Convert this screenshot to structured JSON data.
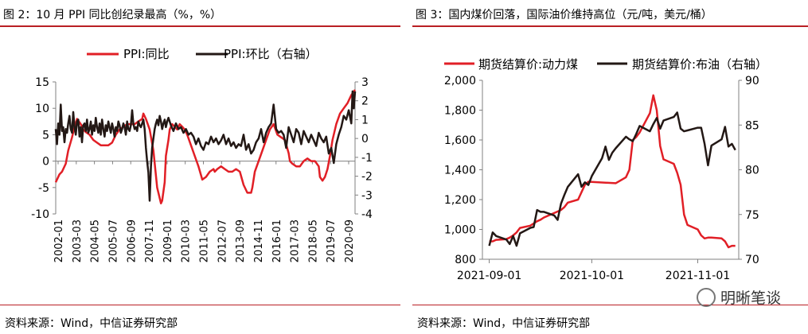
{
  "left": {
    "title": "图 2：10 月 PPI 同比创纪录最高（%，%）",
    "source": "资料来源：Wind，中信证券研究部",
    "chart_data": {
      "type": "line",
      "x_ticks": [
        "2002-01",
        "2003-03",
        "2004-05",
        "2005-07",
        "2006-09",
        "2007-11",
        "2009-01",
        "2010-03",
        "2011-05",
        "2012-07",
        "2013-09",
        "2014-11",
        "2016-01",
        "2017-03",
        "2018-05",
        "2019-07",
        "2020-09"
      ],
      "ylim_left": [
        -10,
        15
      ],
      "y_ticks_left": [
        "-10",
        "-5",
        "0",
        "5",
        "10",
        "15"
      ],
      "ylim_right": [
        -4,
        3
      ],
      "y_ticks_right": [
        "-4",
        "-3",
        "-2",
        "-1",
        "0",
        "1",
        "2",
        "3"
      ],
      "legend_position": "top",
      "series": [
        {
          "name": "PPI:同比",
          "axis": "left",
          "color": "#e11f26",
          "x": [
            0,
            3,
            5,
            8,
            10,
            13,
            15,
            17,
            20,
            22,
            24,
            27,
            30,
            33,
            36,
            39,
            42,
            45,
            48,
            51,
            54,
            57,
            60,
            63,
            66,
            69,
            70,
            72,
            75,
            78,
            81,
            83,
            84,
            85,
            87,
            88,
            90,
            91,
            93,
            95,
            97,
            99,
            101,
            103,
            105,
            108,
            111,
            114,
            117,
            120,
            123,
            126,
            127,
            129,
            132,
            135,
            138,
            141,
            144,
            147,
            150,
            153,
            156,
            157,
            159,
            162,
            165,
            168,
            171,
            174,
            177,
            180,
            183,
            186,
            187,
            189,
            192,
            195,
            198,
            201,
            204,
            207,
            210,
            211,
            213,
            215,
            217,
            219,
            221,
            224,
            227,
            230,
            233,
            236,
            239
          ],
          "y": [
            -4,
            -2.5,
            -2,
            -0.5,
            2,
            4.5,
            6.5,
            8,
            7,
            6,
            5.5,
            5,
            4,
            3.5,
            3,
            3,
            3,
            3.5,
            5,
            6,
            6.5,
            7,
            7,
            7,
            7.5,
            8,
            9,
            8,
            6,
            2,
            -5,
            -7,
            -8,
            -7.5,
            -4,
            1,
            4,
            6,
            7,
            6.5,
            6,
            7,
            6.5,
            6,
            5,
            3,
            1,
            -1,
            -3.5,
            -3,
            -2,
            -1.5,
            -2,
            -1.5,
            -1,
            -1.5,
            -2,
            -2,
            -1.5,
            -2,
            -4.5,
            -6,
            -6,
            -5,
            -2,
            0,
            2,
            4,
            6,
            7,
            5,
            4.5,
            4,
            1.5,
            0,
            -0.5,
            -1,
            -1,
            0,
            0.5,
            0,
            0,
            -1,
            -3,
            -3.7,
            -3,
            -1.5,
            1,
            4,
            7,
            9,
            10,
            11,
            12.5,
            13.5
          ]
        },
        {
          "name": "PPI:环比（右轴）",
          "axis": "right",
          "color": "#231815",
          "x": [
            0,
            1,
            2,
            3,
            4,
            5,
            6,
            7,
            8,
            9,
            10,
            11,
            12,
            13,
            14,
            15,
            16,
            17,
            18,
            19,
            20,
            21,
            22,
            23,
            24,
            25,
            26,
            27,
            28,
            29,
            30,
            31,
            32,
            33,
            34,
            35,
            36,
            37,
            38,
            39,
            40,
            41,
            42,
            43,
            44,
            45,
            46,
            47,
            48,
            49,
            50,
            51,
            52,
            53,
            54,
            55,
            56,
            57,
            58,
            59,
            60,
            61,
            62,
            63,
            64,
            65,
            66,
            67,
            68,
            69,
            70,
            71,
            72,
            73,
            74,
            75,
            76,
            77,
            78,
            79,
            80,
            81,
            82,
            83,
            84,
            85,
            86,
            87,
            88,
            89,
            90,
            92,
            94,
            96,
            98,
            100,
            102,
            104,
            106,
            108,
            110,
            112,
            114,
            116,
            118,
            120,
            122,
            124,
            126,
            128,
            130,
            132,
            134,
            136,
            138,
            140,
            142,
            144,
            146,
            148,
            150,
            152,
            154,
            156,
            158,
            160,
            162,
            164,
            166,
            168,
            170,
            172,
            174,
            176,
            178,
            180,
            182,
            184,
            186,
            188,
            190,
            192,
            194,
            196,
            198,
            200,
            202,
            204,
            206,
            208,
            210,
            212,
            214,
            216,
            218,
            220,
            222,
            224,
            226,
            228,
            230,
            232,
            234,
            236,
            237,
            238,
            239
          ],
          "y": [
            0.5,
            -0.3,
            0.8,
            0.2,
            1.8,
            0.4,
            0.6,
            -0.2,
            0.5,
            0.3,
            0.8,
            1.2,
            0.5,
            0.3,
            1.4,
            0.6,
            0.2,
            0.9,
            1.0,
            0.1,
            0.6,
            -0.2,
            0.7,
            0.8,
            0.4,
            1.0,
            0.3,
            0.5,
            0.9,
            0.2,
            0.7,
            0.4,
            1.1,
            0.6,
            0.3,
            0.8,
            0.2,
            1.0,
            0.5,
            0.1,
            0.7,
            0.4,
            0.9,
            0.6,
            0.3,
            0.8,
            0.5,
            0.1,
            0.6,
            0.4,
            0.9,
            0.7,
            0.3,
            0.5,
            0.8,
            0.6,
            0.2,
            0.9,
            0.5,
            0.4,
            0.7,
            1.5,
            0.8,
            0.5,
            0.6,
            0.4,
            0.9,
            0.7,
            0.6,
            0.8,
            1.0,
            0.5,
            -0.5,
            -1.2,
            -1.8,
            -3.3,
            -1.5,
            -0.5,
            0.0,
            0.5,
            0.8,
            1.0,
            0.7,
            1.2,
            0.9,
            0.5,
            0.8,
            1.0,
            0.6,
            0.9,
            1.1,
            0.7,
            0.4,
            0.8,
            0.5,
            0.6,
            0.3,
            0.5,
            0.2,
            0.3,
            0.1,
            -0.3,
            0.0,
            -0.4,
            -0.6,
            -0.2,
            -0.3,
            0.1,
            -0.2,
            0.0,
            -0.3,
            -0.1,
            0.2,
            -0.3,
            0.0,
            -0.4,
            -0.2,
            -0.5,
            -0.3,
            -0.4,
            0.2,
            -0.6,
            -0.3,
            -0.8,
            -0.6,
            -0.2,
            0.0,
            0.5,
            -0.2,
            0.3,
            0.6,
            0.8,
            1.8,
            0.5,
            0.3,
            0.4,
            0.2,
            -0.5,
            0.6,
            0.2,
            -0.2,
            0.5,
            0.3,
            -0.3,
            0.4,
            0.1,
            -0.2,
            0.2,
            -0.1,
            -0.4,
            0.3,
            0.0,
            -0.2,
            0.1,
            -0.8,
            -0.5,
            -1.3,
            -0.3,
            0.2,
            0.6,
            1.2,
            1.0,
            1.5,
            0.8,
            2.5,
            1.6,
            2.5
          ]
        }
      ]
    }
  },
  "right": {
    "title": "图 3：国内煤价回落，国际油价维持高位（元/吨，美元/桶）",
    "source": "资料来源：Wind，中信证券研究部",
    "chart_data": {
      "type": "line",
      "x_ticks": [
        "2021-09-01",
        "2021-10-01",
        "2021-11-01"
      ],
      "ylim_left": [
        800,
        2000
      ],
      "y_ticks_left": [
        "800",
        "1,000",
        "1,200",
        "1,400",
        "1,600",
        "1,800",
        "2,000"
      ],
      "ylim_right": [
        70,
        90
      ],
      "y_ticks_right": [
        "70",
        "75",
        "80",
        "85",
        "90"
      ],
      "legend_position": "top",
      "series": [
        {
          "name": "期货结算价:动力煤",
          "axis": "left",
          "color": "#e11f26",
          "x": [
            "2021-09-01",
            "2021-09-02",
            "2021-09-03",
            "2021-09-06",
            "2021-09-07",
            "2021-09-08",
            "2021-09-09",
            "2021-09-10",
            "2021-09-13",
            "2021-09-14",
            "2021-09-15",
            "2021-09-16",
            "2021-09-17",
            "2021-09-22",
            "2021-09-23",
            "2021-09-24",
            "2021-09-27",
            "2021-09-28",
            "2021-09-29",
            "2021-09-30",
            "2021-10-08",
            "2021-10-11",
            "2021-10-12",
            "2021-10-13",
            "2021-10-14",
            "2021-10-15",
            "2021-10-18",
            "2021-10-19",
            "2021-10-20",
            "2021-10-21",
            "2021-10-22",
            "2021-10-25",
            "2021-10-26",
            "2021-10-27",
            "2021-10-28",
            "2021-10-29",
            "2021-11-01",
            "2021-11-02",
            "2021-11-03",
            "2021-11-04",
            "2021-11-05",
            "2021-11-08",
            "2021-11-09",
            "2021-11-10",
            "2021-11-11",
            "2021-11-12"
          ],
          "y": [
            920,
            920,
            930,
            935,
            945,
            960,
            980,
            1010,
            1025,
            1040,
            1055,
            1065,
            1080,
            1130,
            1150,
            1180,
            1200,
            1250,
            1300,
            1320,
            1310,
            1350,
            1400,
            1600,
            1620,
            1650,
            1780,
            1900,
            1800,
            1560,
            1470,
            1440,
            1380,
            1300,
            1100,
            1030,
            1000,
            960,
            940,
            945,
            945,
            940,
            920,
            880,
            890,
            890
          ]
        },
        {
          "name": "期货结算价:布油（右轴）",
          "axis": "right",
          "color": "#231815",
          "x": [
            "2021-09-01",
            "2021-09-02",
            "2021-09-03",
            "2021-09-06",
            "2021-09-07",
            "2021-09-08",
            "2021-09-09",
            "2021-09-10",
            "2021-09-13",
            "2021-09-14",
            "2021-09-15",
            "2021-09-16",
            "2021-09-17",
            "2021-09-20",
            "2021-09-21",
            "2021-09-22",
            "2021-09-23",
            "2021-09-24",
            "2021-09-27",
            "2021-09-28",
            "2021-09-29",
            "2021-09-30",
            "2021-10-01",
            "2021-10-04",
            "2021-10-05",
            "2021-10-06",
            "2021-10-07",
            "2021-10-08",
            "2021-10-11",
            "2021-10-12",
            "2021-10-13",
            "2021-10-14",
            "2021-10-15",
            "2021-10-18",
            "2021-10-19",
            "2021-10-20",
            "2021-10-21",
            "2021-10-22",
            "2021-10-25",
            "2021-10-26",
            "2021-10-27",
            "2021-10-28",
            "2021-10-29",
            "2021-11-01",
            "2021-11-02",
            "2021-11-03",
            "2021-11-04",
            "2021-11-05",
            "2021-11-08",
            "2021-11-09",
            "2021-11-10",
            "2021-11-11",
            "2021-11-12"
          ],
          "y": [
            71.5,
            73.0,
            72.6,
            72.2,
            71.7,
            72.6,
            71.5,
            72.9,
            73.5,
            73.6,
            75.5,
            75.3,
            75.3,
            74.9,
            74.4,
            76.2,
            77.2,
            78.1,
            79.5,
            78.1,
            78.6,
            78.3,
            79.3,
            81.3,
            82.6,
            81.1,
            81.9,
            82.4,
            83.7,
            83.4,
            83.2,
            84.0,
            84.9,
            84.3,
            85.1,
            85.8,
            84.6,
            85.5,
            85.9,
            86.4,
            84.6,
            84.3,
            84.4,
            84.7,
            84.7,
            82.9,
            80.5,
            82.7,
            83.4,
            84.8,
            82.6,
            82.9,
            82.2
          ]
        }
      ]
    }
  },
  "watermark": {
    "text": "明晰笔谈"
  }
}
